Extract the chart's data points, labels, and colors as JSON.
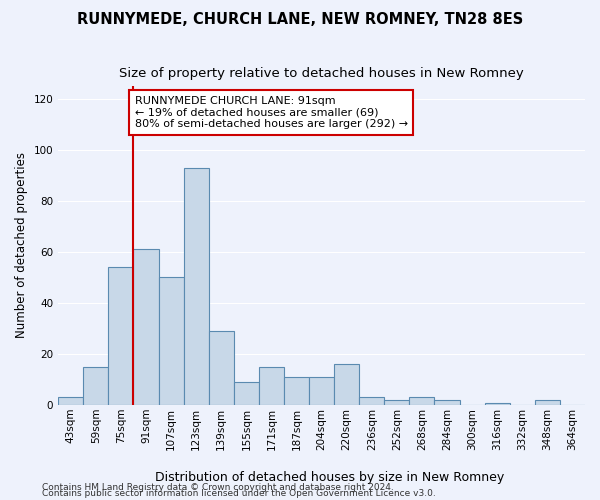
{
  "title": "RUNNYMEDE, CHURCH LANE, NEW ROMNEY, TN28 8ES",
  "subtitle": "Size of property relative to detached houses in New Romney",
  "xlabel": "Distribution of detached houses by size in New Romney",
  "ylabel": "Number of detached properties",
  "categories": [
    "43sqm",
    "59sqm",
    "75sqm",
    "91sqm",
    "107sqm",
    "123sqm",
    "139sqm",
    "155sqm",
    "171sqm",
    "187sqm",
    "204sqm",
    "220sqm",
    "236sqm",
    "252sqm",
    "268sqm",
    "284sqm",
    "300sqm",
    "316sqm",
    "332sqm",
    "348sqm",
    "364sqm"
  ],
  "values": [
    3,
    15,
    54,
    61,
    50,
    93,
    29,
    9,
    15,
    11,
    11,
    16,
    3,
    2,
    3,
    2,
    0,
    1,
    0,
    2,
    0
  ],
  "bar_color": "#c8d8e8",
  "bar_edge_color": "#5a8ab0",
  "vline_color": "#cc0000",
  "vline_x_index": 3,
  "annotation_text": "RUNNYMEDE CHURCH LANE: 91sqm\n← 19% of detached houses are smaller (69)\n80% of semi-detached houses are larger (292) →",
  "annotation_box_color": "#ffffff",
  "annotation_box_edge": "#cc0000",
  "ylim": [
    0,
    125
  ],
  "yticks": [
    0,
    20,
    40,
    60,
    80,
    100,
    120
  ],
  "footer1": "Contains HM Land Registry data © Crown copyright and database right 2024.",
  "footer2": "Contains public sector information licensed under the Open Government Licence v3.0.",
  "background_color": "#eef2fc",
  "plot_background": "#eef2fc",
  "grid_color": "#ffffff",
  "title_fontsize": 10.5,
  "subtitle_fontsize": 9.5,
  "xlabel_fontsize": 9,
  "ylabel_fontsize": 8.5,
  "tick_fontsize": 7.5,
  "annotation_fontsize": 8,
  "footer_fontsize": 6.5
}
